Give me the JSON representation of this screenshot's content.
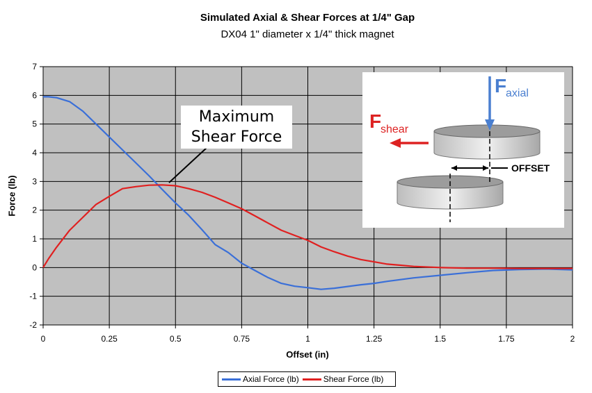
{
  "title": "Simulated Axial & Shear Forces at 1/4\" Gap",
  "subtitle": "DX04 1\" diameter x 1/4\" thick magnet",
  "annotation": {
    "line1": "Maximum",
    "line2": "Shear Force"
  },
  "inset": {
    "f_axial_main": "F",
    "f_axial_sub": "axial",
    "f_shear_main": "F",
    "f_shear_sub": "shear",
    "offset_label": "OFFSET"
  },
  "colors": {
    "plot_background": "#c0c0c0",
    "axial": "#3a6fd8",
    "shear": "#e02020",
    "inset_blue": "#4a7fd0",
    "inset_red": "#dd2222"
  },
  "chart_data": {
    "type": "line",
    "title": "Simulated Axial & Shear Forces at 1/4\" Gap",
    "subtitle": "DX04 1\" diameter x 1/4\" thick magnet",
    "xlabel": "Offset (in)",
    "ylabel": "Force (lb)",
    "xlim": [
      0,
      2
    ],
    "ylim": [
      -2,
      7
    ],
    "x_ticks": [
      "0",
      "0.25",
      "0.5",
      "0.75",
      "1",
      "1.25",
      "1.5",
      "1.75",
      "2"
    ],
    "y_ticks": [
      "-2",
      "-1",
      "0",
      "1",
      "2",
      "3",
      "4",
      "5",
      "6",
      "7"
    ],
    "grid": true,
    "legend_position": "bottom",
    "series": [
      {
        "name": "Axial Force (lb)",
        "x": [
          0,
          0.02,
          0.05,
          0.1,
          0.15,
          0.2,
          0.25,
          0.3,
          0.35,
          0.4,
          0.45,
          0.5,
          0.55,
          0.6,
          0.65,
          0.7,
          0.75,
          0.8,
          0.85,
          0.9,
          0.95,
          1.0,
          1.05,
          1.1,
          1.15,
          1.2,
          1.25,
          1.3,
          1.35,
          1.4,
          1.5,
          1.6,
          1.7,
          1.8,
          1.9,
          2.0
        ],
        "y": [
          5.95,
          5.95,
          5.92,
          5.78,
          5.45,
          5.0,
          4.55,
          4.1,
          3.65,
          3.2,
          2.72,
          2.25,
          1.82,
          1.32,
          0.8,
          0.52,
          0.15,
          -0.1,
          -0.35,
          -0.55,
          -0.65,
          -0.7,
          -0.76,
          -0.72,
          -0.66,
          -0.6,
          -0.55,
          -0.48,
          -0.42,
          -0.36,
          -0.27,
          -0.18,
          -0.1,
          -0.07,
          -0.05,
          -0.08
        ]
      },
      {
        "name": "Shear Force (lb)",
        "x": [
          0,
          0.02,
          0.05,
          0.1,
          0.15,
          0.2,
          0.25,
          0.3,
          0.35,
          0.4,
          0.45,
          0.5,
          0.55,
          0.6,
          0.65,
          0.7,
          0.75,
          0.8,
          0.85,
          0.9,
          0.95,
          1.0,
          1.05,
          1.1,
          1.15,
          1.2,
          1.25,
          1.3,
          1.35,
          1.4,
          1.5,
          1.6,
          1.7,
          1.8,
          1.9,
          2.0
        ],
        "y": [
          0.0,
          0.3,
          0.7,
          1.3,
          1.75,
          2.2,
          2.48,
          2.75,
          2.82,
          2.87,
          2.88,
          2.85,
          2.75,
          2.62,
          2.45,
          2.25,
          2.05,
          1.8,
          1.55,
          1.3,
          1.12,
          0.95,
          0.72,
          0.55,
          0.4,
          0.28,
          0.2,
          0.12,
          0.08,
          0.04,
          0.0,
          -0.02,
          -0.02,
          -0.03,
          -0.03,
          -0.03
        ]
      }
    ]
  }
}
